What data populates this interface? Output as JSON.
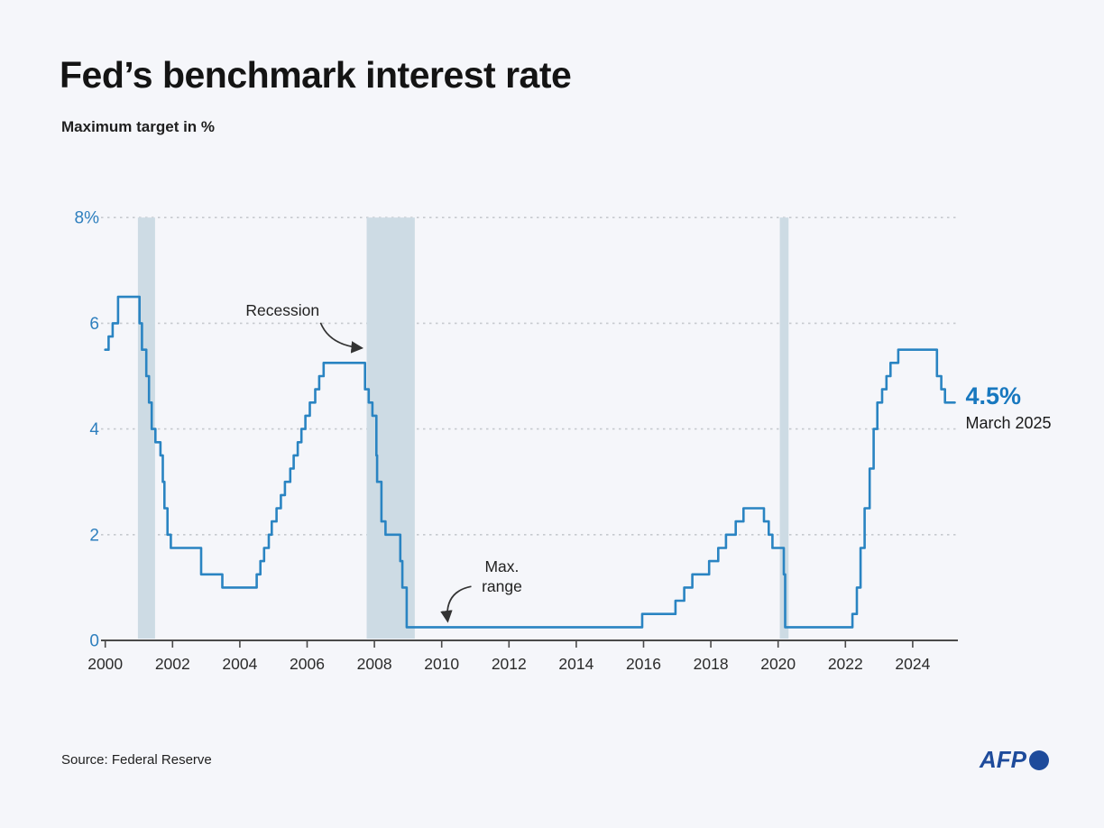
{
  "header": {
    "title": "Fed’s benchmark interest rate",
    "subtitle": "Maximum target in %"
  },
  "footer": {
    "source": "Source: Federal Reserve",
    "brand": "AFP"
  },
  "chart_data": {
    "type": "line",
    "step": true,
    "title": "Fed’s benchmark interest rate",
    "ylabel": "Maximum target in %",
    "xlim": [
      1999.85,
      2025.4
    ],
    "ylim": [
      0,
      8
    ],
    "grid": "dashed-horizontal",
    "yticks": [
      {
        "v": 0,
        "label": "0"
      },
      {
        "v": 2,
        "label": "2"
      },
      {
        "v": 4,
        "label": "4"
      },
      {
        "v": 6,
        "label": "6"
      },
      {
        "v": 8,
        "label": "8%"
      }
    ],
    "xticks": [
      2000,
      2002,
      2004,
      2006,
      2008,
      2010,
      2012,
      2014,
      2016,
      2018,
      2020,
      2022,
      2024
    ],
    "series": [
      {
        "name": "Fed funds maximum target (%)",
        "points": [
          [
            2000.0,
            5.5
          ],
          [
            2000.1,
            5.75
          ],
          [
            2000.22,
            6.0
          ],
          [
            2000.38,
            6.5
          ],
          [
            2001.02,
            6.0
          ],
          [
            2001.09,
            5.5
          ],
          [
            2001.22,
            5.0
          ],
          [
            2001.3,
            4.5
          ],
          [
            2001.38,
            4.0
          ],
          [
            2001.49,
            3.75
          ],
          [
            2001.64,
            3.5
          ],
          [
            2001.71,
            3.0
          ],
          [
            2001.76,
            2.5
          ],
          [
            2001.85,
            2.0
          ],
          [
            2001.95,
            1.75
          ],
          [
            2002.85,
            1.25
          ],
          [
            2003.48,
            1.0
          ],
          [
            2004.5,
            1.25
          ],
          [
            2004.61,
            1.5
          ],
          [
            2004.72,
            1.75
          ],
          [
            2004.86,
            2.0
          ],
          [
            2004.95,
            2.25
          ],
          [
            2005.09,
            2.5
          ],
          [
            2005.22,
            2.75
          ],
          [
            2005.34,
            3.0
          ],
          [
            2005.5,
            3.25
          ],
          [
            2005.6,
            3.5
          ],
          [
            2005.72,
            3.75
          ],
          [
            2005.83,
            4.0
          ],
          [
            2005.95,
            4.25
          ],
          [
            2006.08,
            4.5
          ],
          [
            2006.24,
            4.75
          ],
          [
            2006.36,
            5.0
          ],
          [
            2006.49,
            5.25
          ],
          [
            2007.72,
            4.75
          ],
          [
            2007.83,
            4.5
          ],
          [
            2007.94,
            4.25
          ],
          [
            2008.06,
            3.5
          ],
          [
            2008.08,
            3.0
          ],
          [
            2008.21,
            2.25
          ],
          [
            2008.33,
            2.0
          ],
          [
            2008.77,
            1.5
          ],
          [
            2008.83,
            1.0
          ],
          [
            2008.96,
            0.25
          ],
          [
            2015.96,
            0.5
          ],
          [
            2016.95,
            0.75
          ],
          [
            2017.21,
            1.0
          ],
          [
            2017.45,
            1.25
          ],
          [
            2017.95,
            1.5
          ],
          [
            2018.22,
            1.75
          ],
          [
            2018.45,
            2.0
          ],
          [
            2018.74,
            2.25
          ],
          [
            2018.97,
            2.5
          ],
          [
            2019.58,
            2.25
          ],
          [
            2019.72,
            2.0
          ],
          [
            2019.83,
            1.75
          ],
          [
            2020.17,
            1.25
          ],
          [
            2020.21,
            0.25
          ],
          [
            2022.21,
            0.5
          ],
          [
            2022.34,
            1.0
          ],
          [
            2022.45,
            1.75
          ],
          [
            2022.57,
            2.5
          ],
          [
            2022.72,
            3.25
          ],
          [
            2022.84,
            4.0
          ],
          [
            2022.95,
            4.5
          ],
          [
            2023.09,
            4.75
          ],
          [
            2023.22,
            5.0
          ],
          [
            2023.34,
            5.25
          ],
          [
            2023.57,
            5.5
          ],
          [
            2024.72,
            5.0
          ],
          [
            2024.85,
            4.75
          ],
          [
            2024.96,
            4.5
          ]
        ]
      }
    ],
    "end_extend_to": 2025.25,
    "recessions": [
      {
        "start": 2000.97,
        "end": 2001.48
      },
      {
        "start": 2007.77,
        "end": 2009.2
      },
      {
        "start": 2020.05,
        "end": 2020.31
      }
    ],
    "annotations": [
      {
        "lines": [
          "Recession"
        ],
        "label": {
          "x": 2005.27,
          "y": 6.23
        },
        "arrow": {
          "from": {
            "x": 2006.4,
            "y": 6.01
          },
          "ctrl": {
            "x": 2006.67,
            "y": 5.58
          },
          "to": {
            "x": 2007.63,
            "y": 5.53
          }
        }
      },
      {
        "lines": [
          "Max.",
          "range"
        ],
        "label": {
          "x": 2011.79,
          "y": 1.19
        },
        "arrow": {
          "from": {
            "x": 2010.88,
            "y": 1.02
          },
          "ctrl": {
            "x": 2010.07,
            "y": 0.92
          },
          "to": {
            "x": 2010.18,
            "y": 0.36
          }
        }
      }
    ],
    "end_label": {
      "value": "4.5%",
      "date": "March 2025",
      "x": 2025.25,
      "y": 4.5
    },
    "colors": {
      "line": "#2a84c2",
      "band": "#cddbe4",
      "grid": "#c6cacf",
      "axis": "#4a4a4a",
      "ytick": "#2e7fbe",
      "xtick": "#2b2b2b",
      "annotation": "#222222",
      "arrow": "#333333",
      "end_value": "#1878bf",
      "brand": "#1e4b9b"
    }
  }
}
